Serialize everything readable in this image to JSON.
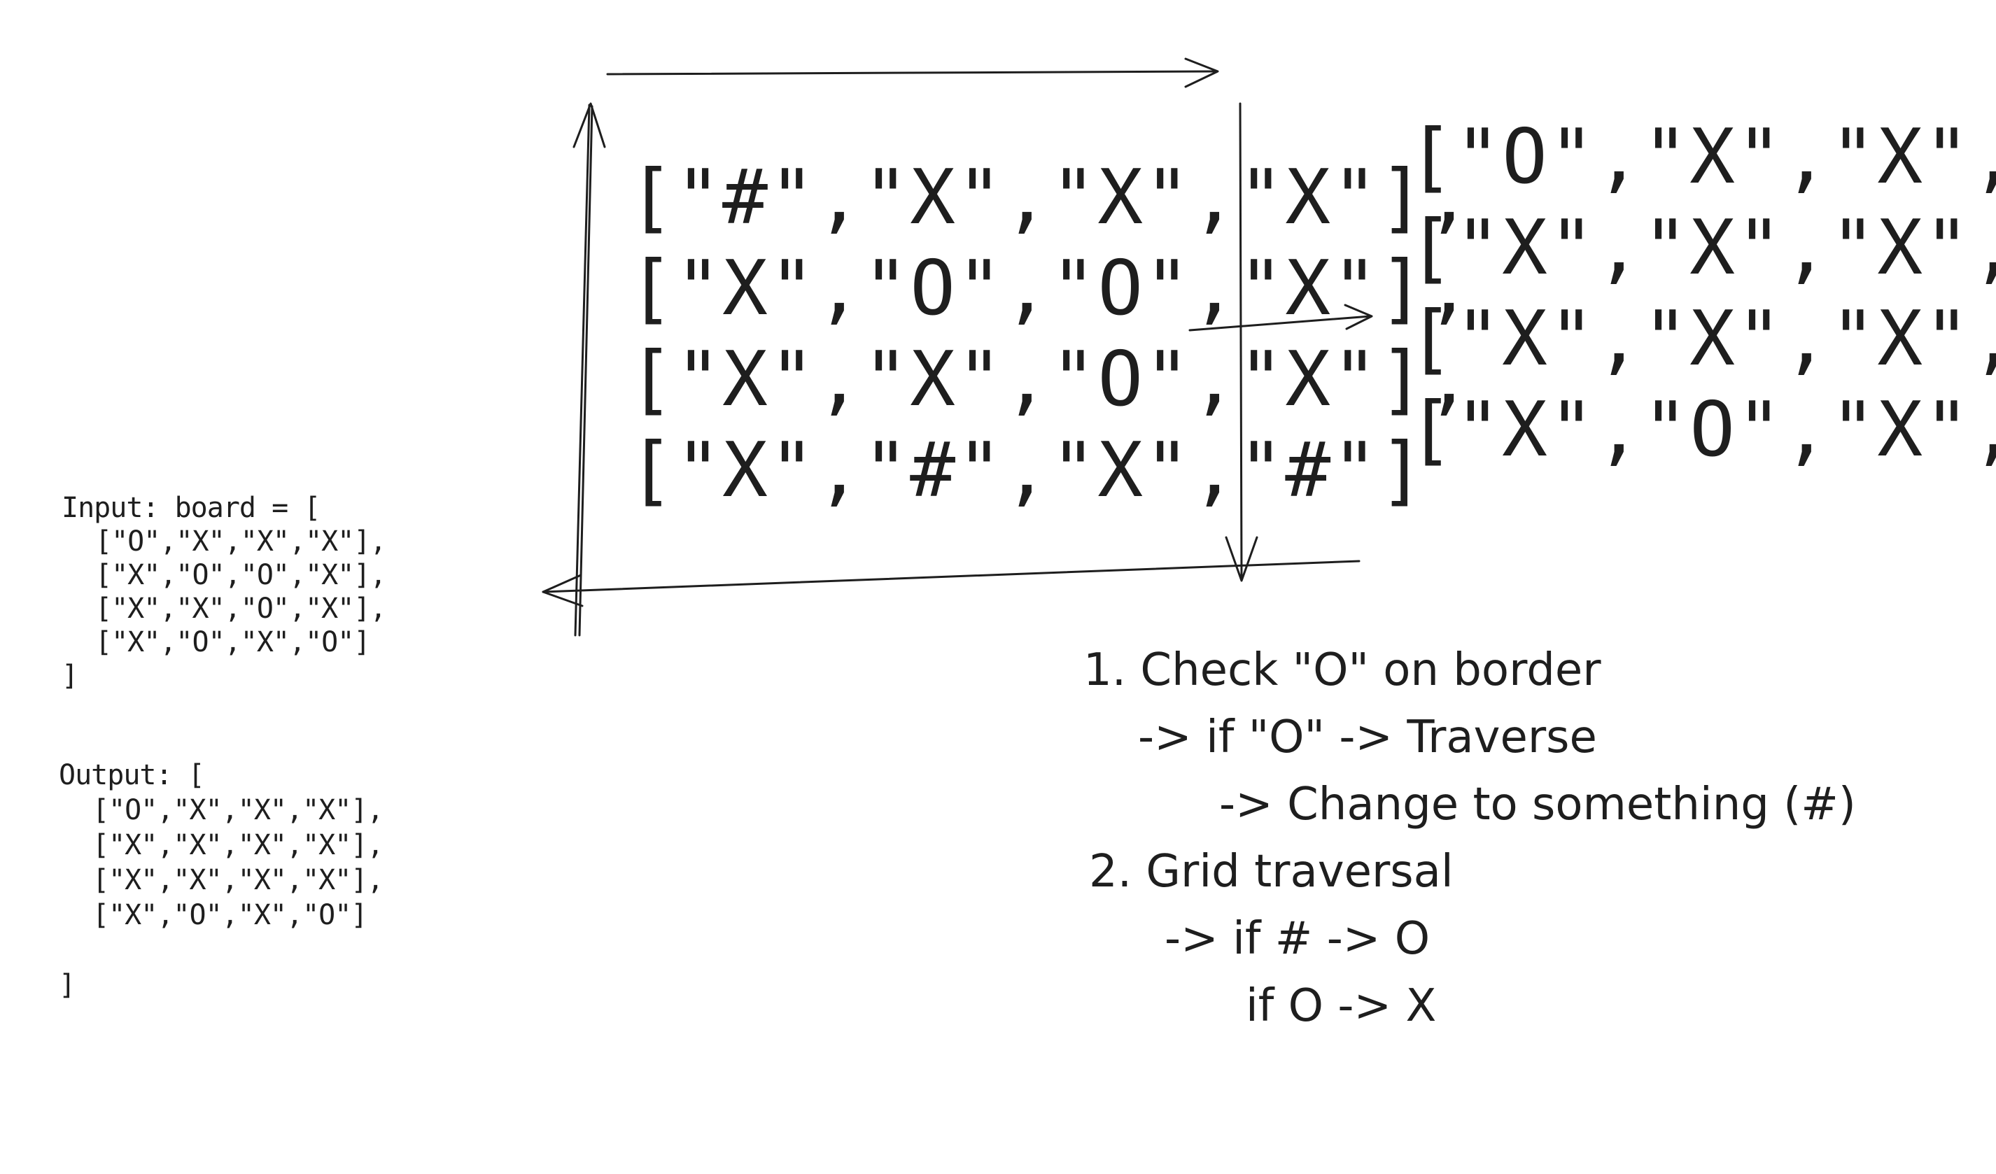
{
  "input_block": {
    "header": "Input: board = [",
    "rows": [
      "[\"O\",\"X\",\"X\",\"X\"],",
      "[\"X\",\"O\",\"O\",\"X\"],",
      "[\"X\",\"X\",\"O\",\"X\"],",
      "[\"X\",\"O\",\"X\",\"O\"]"
    ],
    "closing": "]"
  },
  "output_block": {
    "header": "Output: [",
    "rows": [
      "[\"O\",\"X\",\"X\",\"X\"],",
      "[\"X\",\"X\",\"X\",\"X\"],",
      "[\"X\",\"X\",\"X\",\"X\"],",
      "[\"X\",\"O\",\"X\",\"O\"]"
    ],
    "closing": "]"
  },
  "marked_grid": {
    "rows": [
      "[\"#\",\"X\",\"X\",\"X\"],",
      "[\"X\",\"O\",\"O\",\"X\"],",
      "[\"X\",\"X\",\"O\",\"X\"],",
      "[\"X\",\"#\",\"X\",\"#\"]"
    ]
  },
  "result_grid": {
    "rows": [
      "[\"O\",\"X\",\"X\",\"X\"],",
      "[\"X\",\"X\",\"X\",\"X\"],",
      "[\"X\",\"X\",\"X\",\"X\"],",
      "[\"X\",\"O\",\"X\",\"O\"]"
    ]
  },
  "steps": {
    "lines": [
      "1. Check \"O\" on border",
      "-> if \"O\" -> Traverse",
      "-> Change to something (#)",
      "2. Grid traversal",
      "-> if # -> O",
      "if O -> X"
    ]
  }
}
